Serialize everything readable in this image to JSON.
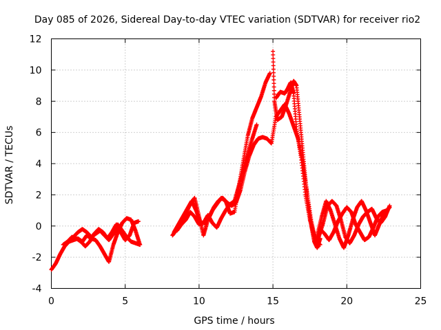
{
  "chart_data": {
    "type": "scatter",
    "title": "Day 085 of 2026, Sidereal Day-to-day VTEC variation (SDTVAR) for receiver rio2",
    "xlabel": "GPS time / hours",
    "ylabel": "SDTVAR / TECUs",
    "xlim": [
      0,
      25
    ],
    "ylim": [
      -4,
      12
    ],
    "xticks": [
      0,
      5,
      10,
      15,
      20,
      25
    ],
    "yticks": [
      -4,
      -2,
      0,
      2,
      4,
      6,
      8,
      10,
      12
    ],
    "grid": true,
    "marker": "+",
    "series": [
      {
        "name": "SDTVAR",
        "color": "#ff0000",
        "tracks": [
          {
            "x": [
              0.0,
              0.3,
              0.6,
              0.9,
              1.2,
              1.5,
              1.8,
              2.1,
              2.4,
              2.7,
              3.0,
              3.3,
              3.6,
              3.9,
              4.2,
              4.5,
              4.8,
              5.1,
              5.4,
              5.7,
              6.0
            ],
            "y": [
              -2.8,
              -2.4,
              -1.8,
              -1.3,
              -1.0,
              -0.9,
              -0.8,
              -1.0,
              -0.6,
              -0.8,
              -0.9,
              -1.3,
              -1.8,
              -2.3,
              -1.2,
              -0.4,
              0.2,
              0.5,
              0.4,
              -0.3,
              -1.2
            ]
          },
          {
            "x": [
              0.8,
              1.1,
              1.4,
              1.7,
              2.0,
              2.3,
              2.6,
              2.9,
              3.2,
              3.5,
              3.8,
              4.1,
              4.4,
              4.7,
              5.0,
              5.3,
              5.6,
              5.9
            ],
            "y": [
              -1.2,
              -1.0,
              -0.7,
              -0.8,
              -1.0,
              -1.3,
              -1.0,
              -0.5,
              -0.2,
              -0.4,
              -0.8,
              -0.4,
              0.1,
              -0.4,
              -0.9,
              -0.6,
              0.2,
              0.3
            ]
          },
          {
            "x": [
              1.5,
              1.8,
              2.1,
              2.4,
              2.7,
              3.0,
              3.3,
              3.6,
              3.9,
              4.2,
              4.5,
              4.8,
              5.1,
              5.4,
              5.7,
              6.0
            ],
            "y": [
              -0.7,
              -0.4,
              -0.2,
              -0.4,
              -0.7,
              -0.5,
              -0.3,
              -0.6,
              -0.9,
              -0.5,
              0.1,
              -0.3,
              -0.7,
              -1.0,
              -1.1,
              -1.2
            ]
          },
          {
            "x": [
              8.2,
              8.5,
              8.8,
              9.1,
              9.4,
              9.7,
              10.0,
              10.3,
              10.6,
              10.9,
              11.2,
              11.5,
              11.8,
              12.1,
              12.4,
              12.7,
              13.0,
              13.3,
              13.6,
              13.9,
              14.2,
              14.5,
              14.8
            ],
            "y": [
              -0.6,
              -0.2,
              0.3,
              0.8,
              1.4,
              1.8,
              0.6,
              -0.6,
              0.4,
              1.0,
              1.4,
              1.8,
              1.6,
              0.8,
              0.9,
              2.6,
              4.2,
              5.8,
              6.9,
              7.6,
              8.3,
              9.2,
              9.8
            ]
          },
          {
            "x": [
              8.3,
              8.6,
              8.9,
              9.2,
              9.5,
              9.8,
              10.1,
              10.4,
              10.7,
              11.0,
              11.3,
              11.6,
              11.9,
              12.2,
              12.5,
              12.8,
              13.1,
              13.4,
              13.7,
              14.0,
              14.3,
              14.6,
              14.9,
              15.2,
              15.5,
              15.8,
              16.1,
              16.4,
              16.7,
              17.0,
              17.3,
              17.6,
              17.9,
              18.2
            ],
            "y": [
              -0.4,
              0.1,
              0.6,
              1.1,
              1.6,
              1.0,
              0.2,
              0.2,
              0.6,
              1.2,
              1.6,
              1.8,
              1.5,
              1.3,
              1.5,
              2.3,
              3.5,
              4.5,
              5.2,
              5.6,
              5.7,
              5.6,
              5.3,
              7.0,
              7.4,
              7.8,
              7.2,
              6.4,
              5.6,
              4.2,
              2.2,
              0.3,
              -1.0,
              -1.2
            ]
          },
          {
            "x": [
              8.5,
              8.8,
              9.1,
              9.4,
              9.7,
              10.0,
              10.3,
              10.6,
              10.9,
              11.2,
              11.5,
              11.8,
              12.1,
              12.4,
              12.7,
              13.0,
              13.3,
              13.6,
              13.9
            ],
            "y": [
              -0.3,
              0.1,
              0.4,
              0.9,
              0.6,
              0.1,
              0.2,
              0.7,
              0.2,
              -0.1,
              0.5,
              1.0,
              1.4,
              1.6,
              2.6,
              3.6,
              4.6,
              5.6,
              6.5
            ]
          },
          {
            "x": [
              15.0,
              15.1,
              15.3,
              15.6,
              15.9,
              16.2,
              16.4,
              16.6,
              16.8,
              17.0,
              17.2,
              17.4,
              17.6,
              17.8,
              18.0,
              18.2
            ],
            "y": [
              11.2,
              8.0,
              6.8,
              7.0,
              7.8,
              8.7,
              9.3,
              9.0,
              7.0,
              5.0,
              3.0,
              1.3,
              0.0,
              -1.0,
              -1.4,
              -0.8
            ]
          },
          {
            "x": [
              15.2,
              15.5,
              15.8,
              16.0,
              16.2,
              16.4,
              16.6,
              16.9,
              17.2,
              17.5,
              17.8,
              18.1
            ],
            "y": [
              8.2,
              8.6,
              8.5,
              8.8,
              9.2,
              8.5,
              6.2,
              4.4,
              2.0,
              0.4,
              -0.6,
              -1.1
            ]
          },
          {
            "x": [
              17.8,
              18.1,
              18.4,
              18.7,
              19.0,
              19.3,
              19.6,
              19.9,
              20.2,
              20.5,
              20.8,
              21.1,
              21.4,
              21.7,
              22.0,
              22.3,
              22.6,
              22.9
            ],
            "y": [
              -1.0,
              -0.7,
              0.2,
              1.3,
              1.6,
              1.3,
              0.4,
              -0.7,
              -1.1,
              -0.6,
              0.1,
              0.6,
              0.9,
              1.1,
              0.5,
              0.2,
              0.6,
              1.3
            ]
          },
          {
            "x": [
              18.0,
              18.3,
              18.6,
              18.9,
              19.2,
              19.5,
              19.8,
              20.1,
              20.4,
              20.7,
              21.0,
              21.3,
              21.6,
              21.9,
              22.2,
              22.5,
              22.8
            ],
            "y": [
              -0.6,
              0.6,
              1.6,
              1.0,
              0.1,
              -0.8,
              -1.4,
              -0.6,
              0.4,
              1.2,
              1.6,
              1.0,
              0.2,
              -0.6,
              0.1,
              0.8,
              1.1
            ]
          },
          {
            "x": [
              18.2,
              18.5,
              18.8,
              19.1,
              19.4,
              19.7,
              20.0,
              20.3,
              20.6,
              20.9,
              21.2,
              21.5,
              21.8,
              22.1,
              22.4,
              22.7,
              22.9
            ],
            "y": [
              -0.2,
              -0.5,
              -0.9,
              -0.4,
              0.3,
              0.8,
              1.2,
              0.9,
              0.1,
              -0.4,
              -0.9,
              -0.7,
              -0.1,
              0.6,
              0.9,
              1.0,
              1.2
            ]
          }
        ]
      }
    ]
  }
}
